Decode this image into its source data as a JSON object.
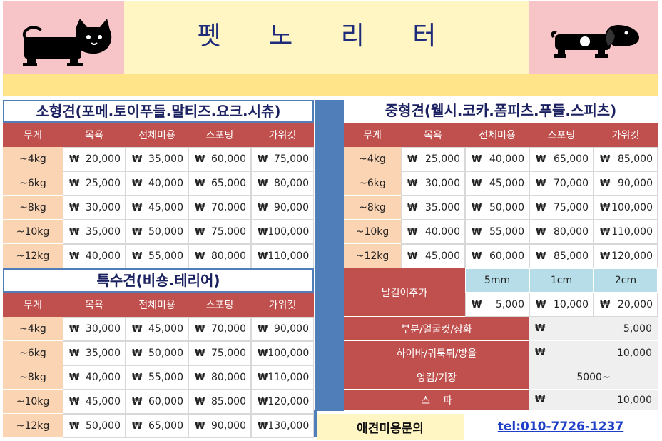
{
  "header": {
    "title": "펫 노 리 터"
  },
  "columns": [
    "무게",
    "목욕",
    "전체미용",
    "스포팅",
    "가위컷"
  ],
  "small": {
    "title": "소형견(포메.토이푸들.말티즈.요크.시츄)",
    "rows": [
      {
        "weight": "~4kg",
        "prices": [
          "20,000",
          "35,000",
          "60,000",
          "75,000"
        ]
      },
      {
        "weight": "~6kg",
        "prices": [
          "25,000",
          "40,000",
          "65,000",
          "80,000"
        ]
      },
      {
        "weight": "~8kg",
        "prices": [
          "30,000",
          "45,000",
          "70,000",
          "90,000"
        ]
      },
      {
        "weight": "~10kg",
        "prices": [
          "35,000",
          "50,000",
          "75,000",
          "100,000"
        ]
      },
      {
        "weight": "~12kg",
        "prices": [
          "40,000",
          "55,000",
          "80,000",
          "110,000"
        ]
      }
    ]
  },
  "special": {
    "title": "특수견(비숑.테리어)",
    "rows": [
      {
        "weight": "~4kg",
        "prices": [
          "30,000",
          "45,000",
          "70,000",
          "90,000"
        ]
      },
      {
        "weight": "~6kg",
        "prices": [
          "35,000",
          "50,000",
          "75,000",
          "100,000"
        ]
      },
      {
        "weight": "~8kg",
        "prices": [
          "40,000",
          "55,000",
          "80,000",
          "110,000"
        ]
      },
      {
        "weight": "~10kg",
        "prices": [
          "45,000",
          "60,000",
          "85,000",
          "120,000"
        ]
      },
      {
        "weight": "~12kg",
        "prices": [
          "50,000",
          "65,000",
          "90,000",
          "130,000"
        ]
      }
    ]
  },
  "medium": {
    "title": "중형견(웰시.코카.폼피츠.푸들.스피츠)",
    "rows": [
      {
        "weight": "~4kg",
        "prices": [
          "25,000",
          "40,000",
          "65,000",
          "85,000"
        ]
      },
      {
        "weight": "~6kg",
        "prices": [
          "30,000",
          "45,000",
          "70,000",
          "90,000"
        ]
      },
      {
        "weight": "~8kg",
        "prices": [
          "35,000",
          "50,000",
          "75,000",
          "100,000"
        ]
      },
      {
        "weight": "~10kg",
        "prices": [
          "40,000",
          "55,000",
          "80,000",
          "110,000"
        ]
      },
      {
        "weight": "~12kg",
        "prices": [
          "45,000",
          "60,000",
          "85,000",
          "120,000"
        ]
      }
    ]
  },
  "extras": {
    "blade_label": "날길이추가",
    "blade_sizes": [
      "5mm",
      "1cm",
      "2cm"
    ],
    "blade_prices": [
      "5,000",
      "10,000",
      "20,000"
    ],
    "partial_label": "부분/얼굴컷/장화",
    "partial_price": "5,000",
    "hygiene_label": "하이바/귀툭튀/방울",
    "hygiene_price": "10,000",
    "matted_label": "엉킴/기장",
    "matted_price": "5000~",
    "spa_label": "스    파",
    "spa_price": "10,000"
  },
  "contact": {
    "label": "애견미용문의",
    "tel": "tel:010-7726-1237"
  },
  "currency": "₩",
  "colors": {
    "header_red": "#c0504d",
    "weight_peach": "#fbd4b4",
    "band_blue": "#4f7eb8",
    "banner_pink": "#f7c4c8",
    "banner_yellow": "#fff6c4",
    "title_navy": "#1e2a7a",
    "tel_blue": "#1f3fc8"
  },
  "icons": [
    "cat-icon",
    "dog-icon"
  ]
}
